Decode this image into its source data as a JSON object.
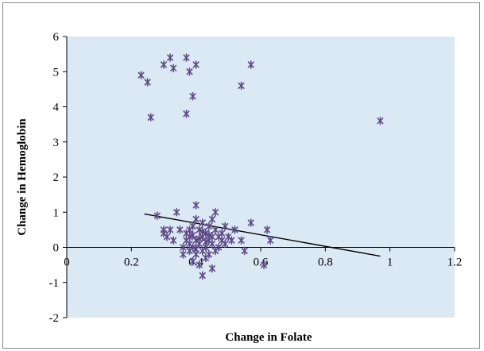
{
  "chart_data": {
    "type": "scatter",
    "title": "",
    "xlabel": "Change in Folate",
    "ylabel": "Change in Hemoglobin",
    "xlim": [
      0,
      1.2
    ],
    "ylim": [
      -2,
      6
    ],
    "x_ticks": [
      0,
      0.2,
      0.4,
      0.6,
      0.8,
      1,
      1.2
    ],
    "x_tick_labels": [
      "0",
      "0.2",
      "0.4",
      "0.6",
      "0.8",
      "1",
      "1.2"
    ],
    "y_ticks": [
      -2,
      -1,
      0,
      1,
      2,
      3,
      4,
      5,
      6
    ],
    "y_tick_labels": [
      "-2",
      "-1",
      "0",
      "1",
      "2",
      "3",
      "4",
      "5",
      "6"
    ],
    "grid": false,
    "legend": "none",
    "marker": "asterisk",
    "colors": {
      "marker": "#5e4a86",
      "trendline": "#000000",
      "plot_background": "#dbe9f5"
    },
    "points": [
      {
        "x": 0.23,
        "y": 4.9
      },
      {
        "x": 0.25,
        "y": 4.7
      },
      {
        "x": 0.3,
        "y": 5.2
      },
      {
        "x": 0.32,
        "y": 5.4
      },
      {
        "x": 0.33,
        "y": 5.1
      },
      {
        "x": 0.37,
        "y": 5.4
      },
      {
        "x": 0.38,
        "y": 5.0
      },
      {
        "x": 0.4,
        "y": 5.2
      },
      {
        "x": 0.39,
        "y": 4.3
      },
      {
        "x": 0.26,
        "y": 3.7
      },
      {
        "x": 0.37,
        "y": 3.8
      },
      {
        "x": 0.54,
        "y": 4.6
      },
      {
        "x": 0.57,
        "y": 5.2
      },
      {
        "x": 0.97,
        "y": 3.6
      },
      {
        "x": 0.28,
        "y": 0.9
      },
      {
        "x": 0.3,
        "y": 0.5
      },
      {
        "x": 0.3,
        "y": 0.4
      },
      {
        "x": 0.31,
        "y": 0.3
      },
      {
        "x": 0.32,
        "y": 0.5
      },
      {
        "x": 0.33,
        "y": 0.2
      },
      {
        "x": 0.34,
        "y": 1.0
      },
      {
        "x": 0.35,
        "y": 0.5
      },
      {
        "x": 0.36,
        "y": 0.0
      },
      {
        "x": 0.36,
        "y": -0.2
      },
      {
        "x": 0.37,
        "y": 0.2
      },
      {
        "x": 0.37,
        "y": 0.4
      },
      {
        "x": 0.38,
        "y": 0.1
      },
      {
        "x": 0.38,
        "y": -0.1
      },
      {
        "x": 0.38,
        "y": 0.3
      },
      {
        "x": 0.39,
        "y": 0.6
      },
      {
        "x": 0.39,
        "y": 0.0
      },
      {
        "x": 0.39,
        "y": -0.4
      },
      {
        "x": 0.4,
        "y": 0.8
      },
      {
        "x": 0.4,
        "y": 0.2
      },
      {
        "x": 0.4,
        "y": -0.2
      },
      {
        "x": 0.4,
        "y": 1.2
      },
      {
        "x": 0.41,
        "y": 0.5
      },
      {
        "x": 0.41,
        "y": 0.1
      },
      {
        "x": 0.41,
        "y": -0.5
      },
      {
        "x": 0.42,
        "y": 0.7
      },
      {
        "x": 0.42,
        "y": 0.3
      },
      {
        "x": 0.42,
        "y": -0.1
      },
      {
        "x": 0.42,
        "y": -0.8
      },
      {
        "x": 0.43,
        "y": 0.4
      },
      {
        "x": 0.43,
        "y": 0.0
      },
      {
        "x": 0.43,
        "y": -0.3
      },
      {
        "x": 0.44,
        "y": 0.6
      },
      {
        "x": 0.44,
        "y": 0.2
      },
      {
        "x": 0.44,
        "y": -0.2
      },
      {
        "x": 0.45,
        "y": 0.8
      },
      {
        "x": 0.45,
        "y": 0.1
      },
      {
        "x": 0.45,
        "y": -0.6
      },
      {
        "x": 0.46,
        "y": 0.5
      },
      {
        "x": 0.46,
        "y": 1.0
      },
      {
        "x": 0.46,
        "y": -0.1
      },
      {
        "x": 0.47,
        "y": 0.3
      },
      {
        "x": 0.47,
        "y": 0.0
      },
      {
        "x": 0.48,
        "y": 0.4
      },
      {
        "x": 0.48,
        "y": 0.2
      },
      {
        "x": 0.49,
        "y": 0.6
      },
      {
        "x": 0.49,
        "y": 0.1
      },
      {
        "x": 0.5,
        "y": 0.3
      },
      {
        "x": 0.51,
        "y": 0.2
      },
      {
        "x": 0.52,
        "y": 0.5
      },
      {
        "x": 0.54,
        "y": 0.2
      },
      {
        "x": 0.55,
        "y": -0.1
      },
      {
        "x": 0.57,
        "y": 0.7
      },
      {
        "x": 0.61,
        "y": -0.5
      },
      {
        "x": 0.62,
        "y": 0.5
      },
      {
        "x": 0.63,
        "y": 0.2
      },
      {
        "x": 0.39,
        "y": 0.35
      },
      {
        "x": 0.41,
        "y": 0.25
      },
      {
        "x": 0.43,
        "y": 0.15
      },
      {
        "x": 0.4,
        "y": -0.05
      },
      {
        "x": 0.42,
        "y": 0.45
      },
      {
        "x": 0.44,
        "y": 0.35
      },
      {
        "x": 0.38,
        "y": 0.5
      },
      {
        "x": 0.45,
        "y": 0.3
      }
    ],
    "trendline": {
      "x": [
        0.24,
        0.97
      ],
      "y": [
        0.95,
        -0.25
      ]
    }
  }
}
